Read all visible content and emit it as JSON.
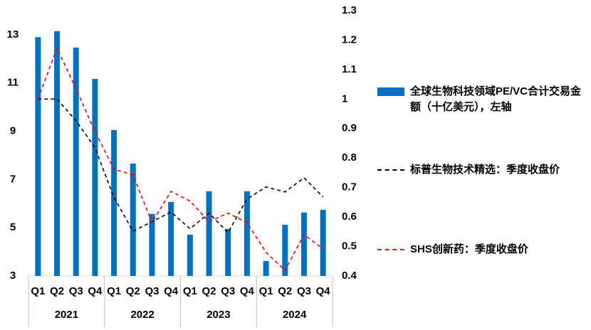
{
  "chart_data": {
    "type": "bar_line",
    "categories": [
      "Q1",
      "Q2",
      "Q3",
      "Q4",
      "Q1",
      "Q2",
      "Q3",
      "Q4",
      "Q1",
      "Q2",
      "Q3",
      "Q4",
      "Q1",
      "Q2",
      "Q3",
      "Q4"
    ],
    "groups": [
      "2021",
      "2022",
      "2023",
      "2024"
    ],
    "series": [
      {
        "name": "全球生物科技领域PE/VC合计交易金额（十亿美元），左轴",
        "type": "bar",
        "color": "#0070c0",
        "values": [
          12.9,
          13.15,
          12.47,
          11.17,
          9.05,
          7.66,
          5.57,
          6.07,
          4.71,
          6.51,
          4.95,
          6.51,
          3.62,
          5.12,
          5.63,
          5.74
        ]
      },
      {
        "name": "标普生物技术精选：季度收盘价",
        "type": "line",
        "axis": "y2",
        "color": "#000000",
        "values": [
          1.0,
          1.0,
          0.927,
          0.835,
          0.666,
          0.552,
          0.584,
          0.617,
          0.56,
          0.613,
          0.547,
          0.661,
          0.702,
          0.685,
          0.733,
          0.668
        ]
      },
      {
        "name": "SHS创新药：季度收盘价",
        "type": "line",
        "axis": "y2",
        "color": "#ff0000",
        "values": [
          1.0,
          1.173,
          1.035,
          0.89,
          0.762,
          0.743,
          0.581,
          0.687,
          0.654,
          0.584,
          0.613,
          0.581,
          0.48,
          0.419,
          0.54,
          0.492
        ]
      }
    ],
    "ylim": [
      3,
      14
    ],
    "yticks": [
      3,
      5,
      7,
      9,
      11,
      13
    ],
    "y2lim": [
      0.4,
      1.3
    ],
    "y2ticks": [
      0.4,
      0.5,
      0.6,
      0.7,
      0.8,
      0.9,
      1,
      1.1,
      1.2,
      1.3
    ]
  }
}
